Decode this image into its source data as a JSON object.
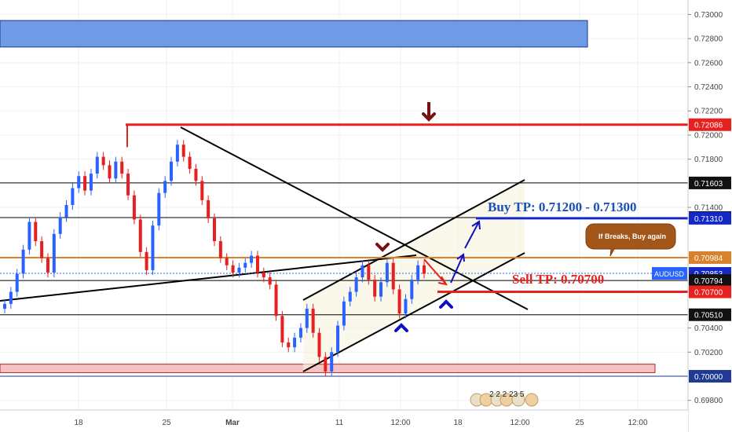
{
  "chart_data": {
    "type": "candlestick",
    "symbol": "AUDUSD",
    "last_price": "0.70853",
    "y_axis": {
      "range": [
        0.6972,
        0.7312
      ],
      "ticks": [
        "0.73000",
        "0.72800",
        "0.72600",
        "0.72400",
        "0.72200",
        "0.72000",
        "0.71800",
        "0.71400",
        "0.70400",
        "0.70200",
        "0.69800"
      ]
    },
    "x_axis": {
      "ticks": [
        "18",
        "25",
        "Mar",
        "11",
        "12:00",
        "18",
        "12:00",
        "25",
        "12:00"
      ]
    },
    "price_labels": [
      {
        "text": "0.72086",
        "value": 0.72086,
        "style": "red"
      },
      {
        "text": "0.71603",
        "value": 0.71603,
        "style": "black"
      },
      {
        "text": "0.71316",
        "value": 0.71316,
        "style": "black"
      },
      {
        "text": "0.71310",
        "value": 0.7131,
        "style": "blue"
      },
      {
        "text": "0.70984",
        "value": 0.70984,
        "style": "orange"
      },
      {
        "text": "0.70853",
        "value": 0.70853,
        "style": "blue"
      },
      {
        "text": "0.70794",
        "value": 0.70794,
        "style": "black"
      },
      {
        "text": "0.70700",
        "value": 0.707,
        "style": "red"
      },
      {
        "text": "0.70510",
        "value": 0.7051,
        "style": "black"
      },
      {
        "text": "0.70000",
        "value": 0.7,
        "style": "navy"
      }
    ],
    "horizontal_lines": [
      {
        "value": 0.72086,
        "color": "#e8201e",
        "width": 3
      },
      {
        "value": 0.71603,
        "color": "#000000",
        "width": 1
      },
      {
        "value": 0.71316,
        "color": "#000000",
        "width": 1
      },
      {
        "value": 0.7131,
        "color": "#1428c8",
        "width": 3
      },
      {
        "value": 0.70984,
        "color": "#d9822b",
        "width": 2
      },
      {
        "value": 0.70794,
        "color": "#000000",
        "width": 1
      },
      {
        "value": 0.707,
        "color": "#e8201e",
        "width": 3
      },
      {
        "value": 0.7051,
        "color": "#000000",
        "width": 1
      },
      {
        "value": 0.7,
        "color": "#1f3a93",
        "width": 1
      }
    ],
    "zones": [
      {
        "from": 0.7295,
        "to": 0.7273,
        "fill": "#6f9ae6",
        "stroke": "#1a3a8a"
      },
      {
        "from": 0.701,
        "to": 0.7003,
        "fill": "#f4c4c4",
        "stroke": "#c02020"
      }
    ],
    "annotations": {
      "buy_tp": "Buy TP: 0.71200 - 0.71300",
      "sell_tp": "Sell TP:  0.70700",
      "callout": "If Breaks, Buy again",
      "event_badge": "2 2 2 23 5"
    },
    "colors": {
      "up": "#2962ff",
      "down": "#e91e1e",
      "grid": "#eef0f3"
    },
    "candles": [
      0.706,
      0.707,
      0.7085,
      0.7105,
      0.7128,
      0.7112,
      0.7098,
      0.7086,
      0.7118,
      0.7132,
      0.7142,
      0.7156,
      0.7166,
      0.7154,
      0.7168,
      0.7182,
      0.7175,
      0.7164,
      0.7178,
      0.7168,
      0.715,
      0.713,
      0.7103,
      0.7088,
      0.7125,
      0.7152,
      0.7162,
      0.7178,
      0.7192,
      0.7182,
      0.7172,
      0.7162,
      0.7146,
      0.7131,
      0.7112,
      0.7098,
      0.7092,
      0.7086,
      0.709,
      0.7094,
      0.71,
      0.7086,
      0.7082,
      0.7076,
      0.705,
      0.7028,
      0.7024,
      0.7032,
      0.704,
      0.7056,
      0.7036,
      0.7016,
      0.7004,
      0.702,
      0.7042,
      0.7062,
      0.707,
      0.7082,
      0.7092,
      0.708,
      0.7066,
      0.7078,
      0.7094,
      0.7072,
      0.7052,
      0.7064,
      0.708,
      0.7092,
      0.7085
    ]
  }
}
